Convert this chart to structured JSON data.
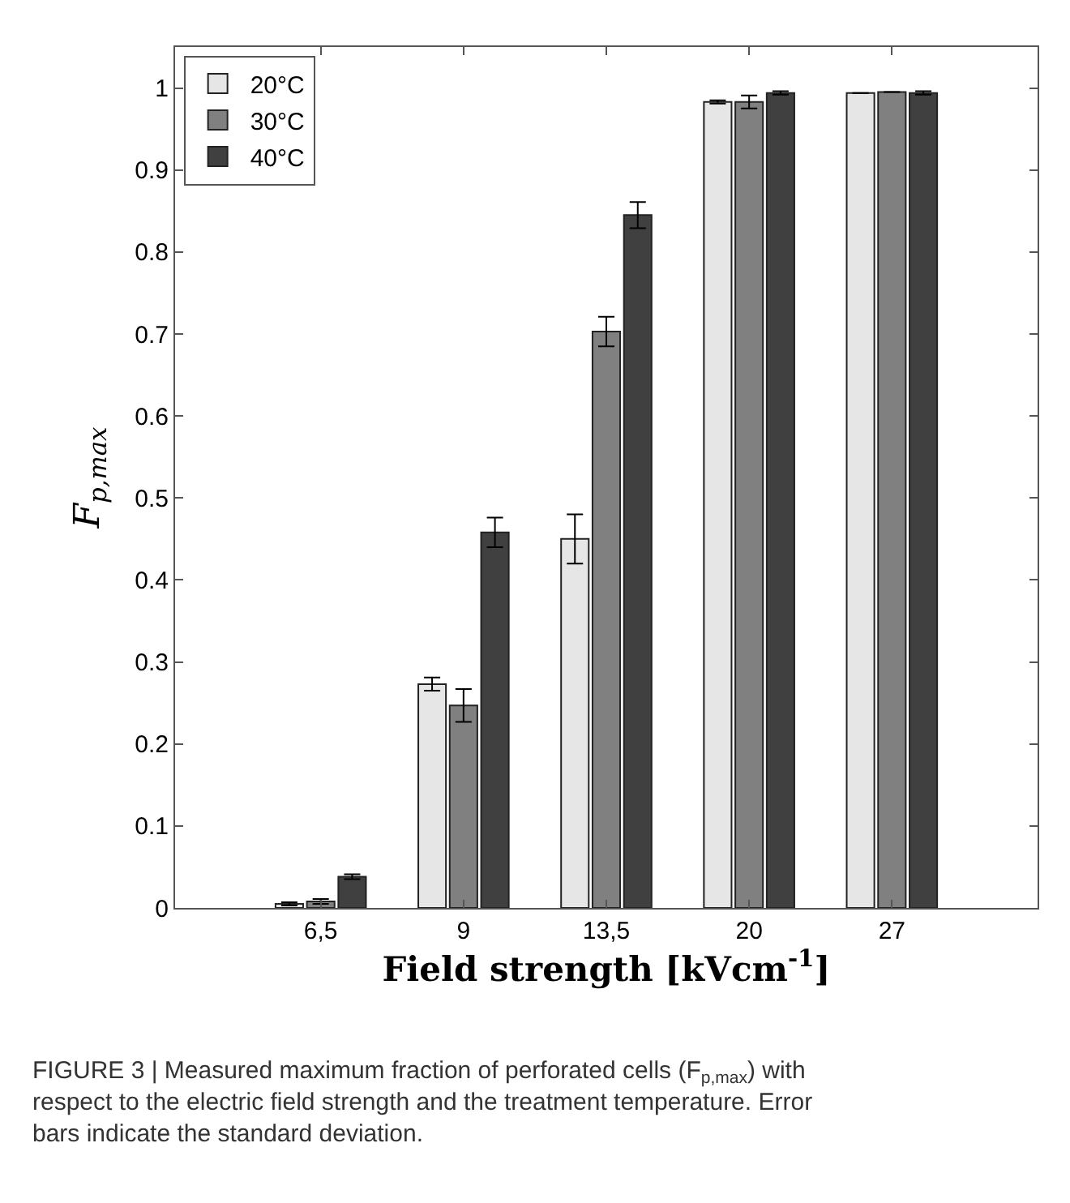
{
  "chart_data": {
    "type": "bar",
    "categories": [
      "6,5",
      "9",
      "13,5",
      "20",
      "27"
    ],
    "series": [
      {
        "name": "20°C",
        "color": "#e6e6e6",
        "values": [
          0.005,
          0.273,
          0.45,
          0.983,
          0.994
        ],
        "errors": [
          0.002,
          0.008,
          0.03,
          0.002,
          null
        ]
      },
      {
        "name": "30°C",
        "color": "#808080",
        "values": [
          0.008,
          0.247,
          0.703,
          0.983,
          0.995
        ],
        "errors": [
          0.003,
          0.02,
          0.018,
          0.008,
          null
        ]
      },
      {
        "name": "40°C",
        "color": "#404040",
        "values": [
          0.038,
          0.458,
          0.845,
          0.994,
          0.994
        ],
        "errors": [
          0.003,
          0.018,
          0.016,
          0.002,
          0.002
        ]
      }
    ],
    "xlabel": "Field strength [kVcm$^{-1}$]",
    "ylabel": "F$_{p,max}$",
    "ylim": [
      0,
      1.05
    ],
    "yticks": [
      0,
      0.1,
      0.2,
      0.3,
      0.4,
      0.5,
      0.6,
      0.7,
      0.8,
      0.9,
      1
    ],
    "legend": "top left",
    "annotations": [
      "FIGURE 3 | Measured maximum fraction of perforated cells (F$_{p,max}$) with respect to the electric field strength and the treatment temperature. Error bars indicate the standard deviation."
    ]
  }
}
